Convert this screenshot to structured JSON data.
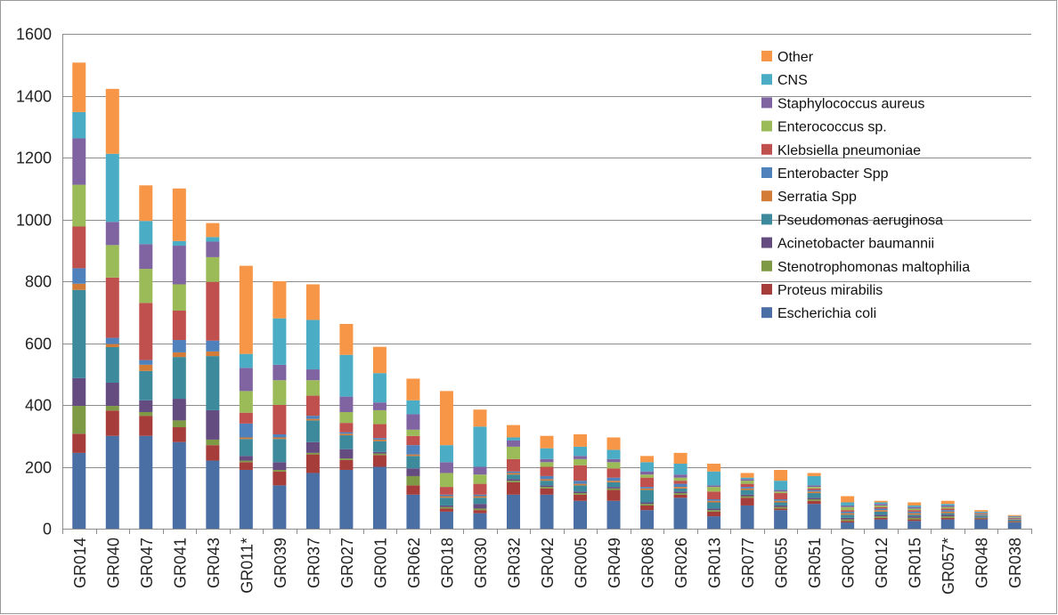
{
  "chart_data": {
    "type": "bar",
    "stacked": true,
    "ylim": [
      0,
      1600
    ],
    "yticks": [
      0,
      200,
      400,
      600,
      800,
      1000,
      1200,
      1400,
      1600
    ],
    "grid": true,
    "legend_position": "top-right",
    "categories": [
      "GR014",
      "GR040",
      "GR047",
      "GR041",
      "GR043",
      "GR011*",
      "GR039",
      "GR037",
      "GR027",
      "GR001",
      "GR062",
      "GR018",
      "GR030",
      "GR032",
      "GR042",
      "GR005",
      "GR049",
      "GR068",
      "GR026",
      "GR013",
      "GR077",
      "GR055",
      "GR051",
      "GR007",
      "GR012",
      "GR015",
      "GR057*",
      "GR048",
      "GR038"
    ],
    "series": [
      {
        "name": "Escherichia coli",
        "color": "#4a6fa5",
        "values": [
          245,
          300,
          300,
          280,
          220,
          190,
          140,
          180,
          190,
          200,
          110,
          55,
          50,
          110,
          110,
          90,
          90,
          60,
          100,
          40,
          75,
          60,
          80,
          20,
          30,
          25,
          30,
          30,
          20
        ]
      },
      {
        "name": "Proteus mirabilis",
        "color": "#a63d3b",
        "values": [
          62,
          82,
          65,
          48,
          50,
          25,
          45,
          60,
          32,
          38,
          30,
          10,
          10,
          40,
          20,
          20,
          35,
          15,
          10,
          15,
          25,
          5,
          10,
          5,
          5,
          5,
          5,
          3,
          2
        ]
      },
      {
        "name": "Stenotrophomonas maltophilia",
        "color": "#7e9a45",
        "values": [
          90,
          15,
          12,
          22,
          18,
          5,
          5,
          5,
          5,
          5,
          30,
          5,
          5,
          5,
          5,
          5,
          5,
          5,
          5,
          5,
          5,
          5,
          5,
          5,
          5,
          5,
          5,
          2,
          2
        ]
      },
      {
        "name": "Acinetobacter baumannii",
        "color": "#644b80",
        "values": [
          90,
          75,
          38,
          70,
          95,
          15,
          25,
          35,
          30,
          5,
          25,
          5,
          15,
          5,
          5,
          5,
          5,
          5,
          5,
          5,
          5,
          5,
          5,
          5,
          5,
          5,
          5,
          2,
          2
        ]
      },
      {
        "name": "Pseudomonas aeruginosa",
        "color": "#3c8a9c",
        "values": [
          285,
          115,
          95,
          135,
          175,
          55,
          75,
          70,
          45,
          35,
          40,
          25,
          20,
          15,
          15,
          20,
          15,
          40,
          10,
          20,
          15,
          10,
          15,
          10,
          10,
          5,
          5,
          5,
          3
        ]
      },
      {
        "name": "Serratia Spp",
        "color": "#d27c37",
        "values": [
          20,
          10,
          20,
          15,
          15,
          5,
          5,
          5,
          5,
          5,
          5,
          5,
          5,
          5,
          5,
          5,
          5,
          5,
          5,
          5,
          5,
          5,
          5,
          5,
          5,
          5,
          5,
          2,
          2
        ]
      },
      {
        "name": "Enterobacter Spp",
        "color": "#4f81bd",
        "values": [
          50,
          20,
          15,
          40,
          35,
          45,
          10,
          10,
          5,
          5,
          30,
          5,
          5,
          5,
          10,
          10,
          10,
          5,
          10,
          5,
          5,
          5,
          5,
          5,
          5,
          5,
          5,
          2,
          2
        ]
      },
      {
        "name": "Klebsiella pneumoniae",
        "color": "#c0504d",
        "values": [
          135,
          195,
          185,
          95,
          190,
          35,
          95,
          65,
          30,
          45,
          30,
          25,
          35,
          40,
          30,
          50,
          30,
          30,
          10,
          25,
          10,
          20,
          5,
          5,
          5,
          5,
          5,
          2,
          2
        ]
      },
      {
        "name": "Enterococcus sp.",
        "color": "#9bbb59",
        "values": [
          135,
          105,
          110,
          85,
          80,
          70,
          80,
          50,
          35,
          45,
          20,
          45,
          30,
          40,
          15,
          20,
          20,
          10,
          10,
          15,
          10,
          5,
          5,
          10,
          5,
          5,
          5,
          2,
          2
        ]
      },
      {
        "name": "Staphylococcus aureus",
        "color": "#8064a2",
        "values": [
          150,
          75,
          80,
          125,
          50,
          75,
          50,
          35,
          50,
          25,
          50,
          35,
          25,
          20,
          10,
          10,
          10,
          10,
          10,
          5,
          5,
          5,
          5,
          5,
          5,
          5,
          5,
          2,
          2
        ]
      },
      {
        "name": "CNS",
        "color": "#4bacc6",
        "values": [
          85,
          220,
          75,
          15,
          15,
          45,
          150,
          160,
          135,
          95,
          45,
          55,
          130,
          10,
          35,
          30,
          30,
          30,
          35,
          45,
          5,
          30,
          30,
          10,
          5,
          5,
          5,
          3,
          2
        ]
      },
      {
        "name": "Other",
        "color": "#f79646",
        "values": [
          160,
          210,
          115,
          170,
          45,
          285,
          120,
          115,
          100,
          85,
          70,
          175,
          55,
          40,
          40,
          40,
          40,
          20,
          35,
          25,
          15,
          35,
          10,
          20,
          5,
          10,
          10,
          5,
          3
        ]
      }
    ]
  }
}
